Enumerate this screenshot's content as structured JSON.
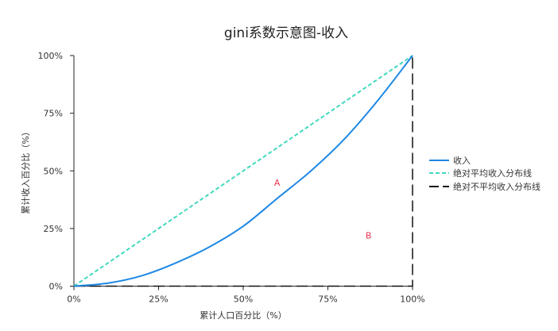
{
  "chart_data": {
    "type": "line",
    "title": "gini系数示意图-收入",
    "xlabel": "累计人口百分比（%）",
    "ylabel": "累计收入百分比（%）",
    "xlim": [
      0,
      100
    ],
    "ylim": [
      0,
      100
    ],
    "x_ticks": [
      "0%",
      "25%",
      "50%",
      "75%",
      "100%"
    ],
    "y_ticks": [
      "0%",
      "25%",
      "50%",
      "75%",
      "100%"
    ],
    "grid": false,
    "legend_position": "right",
    "series": [
      {
        "name": "收入",
        "color": "#1e88e5",
        "style": "solid",
        "x": [
          0,
          10,
          20,
          30,
          40,
          50,
          60,
          70,
          80,
          90,
          100
        ],
        "y": [
          0,
          1.3,
          4.5,
          10,
          17,
          26,
          38,
          50,
          64,
          81,
          100
        ]
      },
      {
        "name": "绝对平均收入分布线",
        "color": "#40d9c0",
        "style": "dashed",
        "x": [
          0,
          100
        ],
        "y": [
          0,
          100
        ]
      },
      {
        "name": "绝对不平均收入分布线",
        "color": "#111111",
        "style": "long-dash",
        "x": [
          0,
          100,
          100
        ],
        "y": [
          0,
          0,
          100
        ]
      }
    ],
    "annotations": [
      {
        "text": "A",
        "x": 60,
        "y": 45,
        "color": "#e8384f"
      },
      {
        "text": "B",
        "x": 87,
        "y": 22,
        "color": "#e8384f"
      }
    ]
  }
}
